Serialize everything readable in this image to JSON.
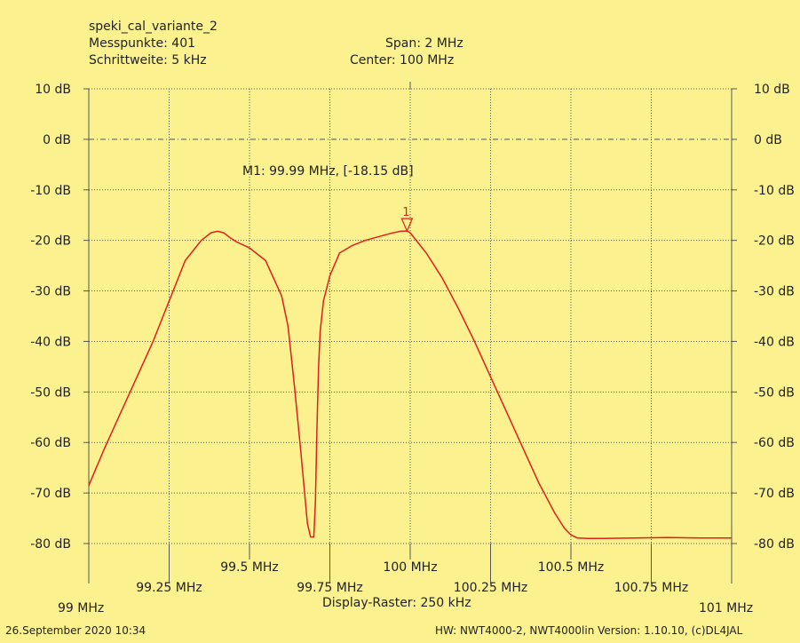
{
  "header": {
    "name": "speki_cal_variante_2",
    "points": "Messpunkte:  401",
    "step": "Schrittweite: 5 kHz",
    "span": "Span: 2 MHz",
    "center": "Center: 100 MHz"
  },
  "footer": {
    "raster": "Display-Raster: 250 kHz",
    "date": "26.September 2020 10:34",
    "hw": "HW: NWT4000-2, NWT4000lin Version: 1.10.10, (c)DL4JAL"
  },
  "marker": {
    "label": "M1: 99.99 MHz, [-18.15 dB]",
    "number": "1",
    "x": 99.99,
    "y": -18.15
  },
  "colors": {
    "background": "#fbf18f",
    "trace": "#e0201a",
    "grid": "#555555"
  },
  "chart_data": {
    "type": "line",
    "title": "speki_cal_variante_2",
    "xlim": [
      99.0,
      101.0
    ],
    "ylim": [
      -80,
      10
    ],
    "x_ticks": [
      99.0,
      99.25,
      99.5,
      99.75,
      100.0,
      100.25,
      100.5,
      100.75,
      101.0
    ],
    "x_tick_labels": [
      "99 MHz",
      "99.25 MHz",
      "99.5 MHz",
      "99.75 MHz",
      "100 MHz",
      "100.25 MHz",
      "100.5 MHz",
      "100.75 MHz",
      "101 MHz"
    ],
    "y_ticks": [
      10,
      0,
      -10,
      -20,
      -30,
      -40,
      -50,
      -60,
      -70,
      -80
    ],
    "y_tick_labels": [
      "10 dB",
      "0 dB",
      "-10 dB",
      "-20 dB",
      "-30 dB",
      "-40 dB",
      "-50 dB",
      "-60 dB",
      "-70 dB",
      "-80 dB"
    ],
    "grid": true,
    "series": [
      {
        "x": [
          99.0,
          99.05,
          99.1,
          99.15,
          99.2,
          99.25,
          99.3,
          99.35,
          99.38,
          99.4,
          99.42,
          99.44,
          99.46,
          99.5,
          99.55,
          99.6,
          99.62,
          99.64,
          99.66,
          99.68,
          99.69,
          99.695,
          99.7,
          99.705,
          99.71,
          99.715,
          99.72,
          99.73,
          99.75,
          99.78,
          99.82,
          99.86,
          99.9,
          99.94,
          99.97,
          99.99,
          100.0,
          100.05,
          100.1,
          100.15,
          100.2,
          100.25,
          100.3,
          100.35,
          100.4,
          100.45,
          100.48,
          100.5,
          100.52,
          100.55,
          100.6,
          100.7,
          100.8,
          100.9,
          101.0
        ],
        "values": [
          -68.5,
          -61,
          -54,
          -47,
          -40,
          -32,
          -24,
          -20,
          -18.5,
          -18.2,
          -18.5,
          -19.5,
          -20.3,
          -21.5,
          -24,
          -31,
          -37,
          -49,
          -62,
          -76,
          -78.7,
          -78.7,
          -78.7,
          -72,
          -57,
          -45,
          -38,
          -32,
          -27,
          -22.5,
          -21,
          -20,
          -19.3,
          -18.6,
          -18.2,
          -18.15,
          -18.5,
          -22.5,
          -27.5,
          -33.5,
          -40,
          -47,
          -54,
          -61,
          -68,
          -74,
          -77,
          -78.3,
          -78.9,
          -79,
          -79,
          -78.9,
          -78.8,
          -78.9,
          -78.9
        ]
      }
    ]
  }
}
